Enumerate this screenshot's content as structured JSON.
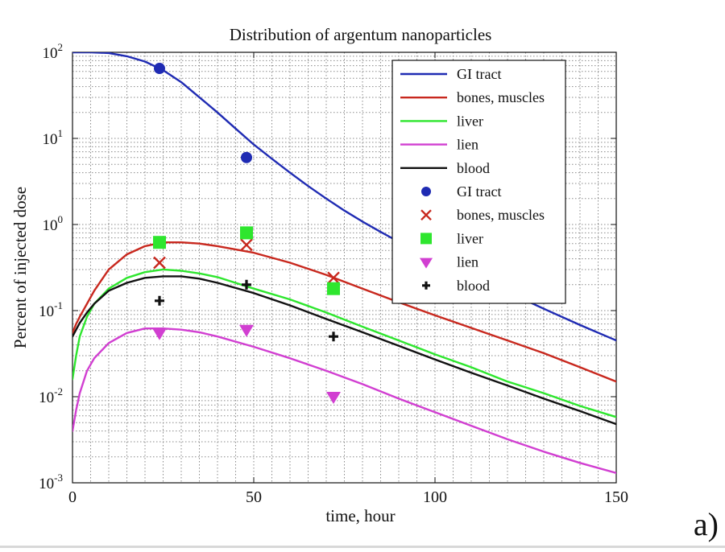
{
  "chart_data": {
    "type": "line",
    "title": "Distribution of argentum nanoparticles",
    "xlabel": "time, hour",
    "ylabel": "Percent of injected dose",
    "xlim": [
      0,
      150
    ],
    "ylim": [
      0.001,
      100
    ],
    "yscale": "log",
    "grid": true,
    "legend_position": "top-right",
    "x_ticks": [
      "0",
      "50",
      "100",
      "150"
    ],
    "y_ticks": [
      {
        "base": "10",
        "exp": "-3"
      },
      {
        "base": "10",
        "exp": "-2"
      },
      {
        "base": "10",
        "exp": "-1"
      },
      {
        "base": "10",
        "exp": "0"
      },
      {
        "base": "10",
        "exp": "1"
      },
      {
        "base": "10",
        "exp": "2"
      }
    ],
    "series": [
      {
        "name": "GI tract",
        "kind": "line",
        "color": "#1f2bb3",
        "x": [
          0,
          5,
          10,
          15,
          20,
          25,
          30,
          35,
          40,
          45,
          50,
          55,
          60,
          65,
          70,
          75,
          80,
          85,
          90,
          95,
          100,
          110,
          120,
          130,
          140,
          150
        ],
        "y": [
          100,
          100,
          98,
          90,
          78,
          62,
          45,
          30,
          20,
          13,
          8.5,
          5.8,
          4.0,
          2.8,
          2.0,
          1.45,
          1.08,
          0.82,
          0.63,
          0.5,
          0.4,
          0.26,
          0.165,
          0.105,
          0.068,
          0.045
        ]
      },
      {
        "name": "bones, muscles",
        "kind": "line",
        "color": "#c8281e",
        "x": [
          0,
          1,
          2,
          4,
          6,
          10,
          15,
          20,
          25,
          30,
          35,
          40,
          50,
          60,
          70,
          80,
          90,
          100,
          110,
          120,
          130,
          140,
          150
        ],
        "y": [
          0.055,
          0.07,
          0.085,
          0.12,
          0.17,
          0.3,
          0.45,
          0.56,
          0.62,
          0.62,
          0.6,
          0.56,
          0.47,
          0.36,
          0.26,
          0.18,
          0.125,
          0.088,
          0.063,
          0.045,
          0.032,
          0.022,
          0.015
        ]
      },
      {
        "name": "liver",
        "kind": "line",
        "color": "#2ee62e",
        "x": [
          0,
          1,
          2,
          4,
          6,
          10,
          15,
          20,
          25,
          30,
          35,
          40,
          50,
          60,
          70,
          80,
          90,
          100,
          110,
          120,
          130,
          140,
          150
        ],
        "y": [
          0.016,
          0.03,
          0.05,
          0.085,
          0.12,
          0.18,
          0.24,
          0.28,
          0.3,
          0.29,
          0.27,
          0.245,
          0.18,
          0.135,
          0.095,
          0.065,
          0.045,
          0.031,
          0.022,
          0.015,
          0.011,
          0.0078,
          0.0058
        ]
      },
      {
        "name": "lien",
        "kind": "line",
        "color": "#d13fd1",
        "x": [
          0,
          1,
          2,
          4,
          6,
          10,
          15,
          20,
          25,
          30,
          35,
          40,
          50,
          60,
          70,
          80,
          90,
          100,
          110,
          120,
          130,
          140,
          150
        ],
        "y": [
          0.004,
          0.007,
          0.011,
          0.02,
          0.028,
          0.042,
          0.055,
          0.062,
          0.062,
          0.06,
          0.056,
          0.05,
          0.038,
          0.028,
          0.02,
          0.014,
          0.0095,
          0.0066,
          0.0046,
          0.0032,
          0.0023,
          0.0017,
          0.0013
        ]
      },
      {
        "name": "blood",
        "kind": "line",
        "color": "#111111",
        "x": [
          0,
          1,
          2,
          4,
          6,
          10,
          15,
          20,
          25,
          30,
          35,
          40,
          50,
          60,
          70,
          80,
          90,
          100,
          110,
          120,
          130,
          140,
          150
        ],
        "y": [
          0.05,
          0.06,
          0.072,
          0.095,
          0.12,
          0.17,
          0.21,
          0.24,
          0.25,
          0.25,
          0.235,
          0.21,
          0.16,
          0.115,
          0.08,
          0.056,
          0.039,
          0.027,
          0.019,
          0.0135,
          0.0095,
          0.0068,
          0.0048
        ]
      },
      {
        "name": "GI tract",
        "kind": "marker",
        "marker": "circle",
        "color": "#1f2bb3",
        "x": [
          24,
          48
        ],
        "y": [
          65,
          6.0
        ]
      },
      {
        "name": "bones, muscles",
        "kind": "marker",
        "marker": "x",
        "color": "#c8281e",
        "x": [
          24,
          48,
          72
        ],
        "y": [
          0.36,
          0.58,
          0.24
        ]
      },
      {
        "name": "liver",
        "kind": "marker",
        "marker": "square",
        "color": "#2ee62e",
        "x": [
          24,
          48,
          72
        ],
        "y": [
          0.62,
          0.8,
          0.18
        ]
      },
      {
        "name": "lien",
        "kind": "marker",
        "marker": "triangle-down",
        "color": "#d13fd1",
        "x": [
          24,
          48,
          72
        ],
        "y": [
          0.055,
          0.06,
          0.01
        ]
      },
      {
        "name": "blood",
        "kind": "marker",
        "marker": "plus",
        "color": "#111111",
        "x": [
          24,
          48,
          72
        ],
        "y": [
          0.13,
          0.2,
          0.05
        ]
      }
    ]
  },
  "panel_label": "a)"
}
